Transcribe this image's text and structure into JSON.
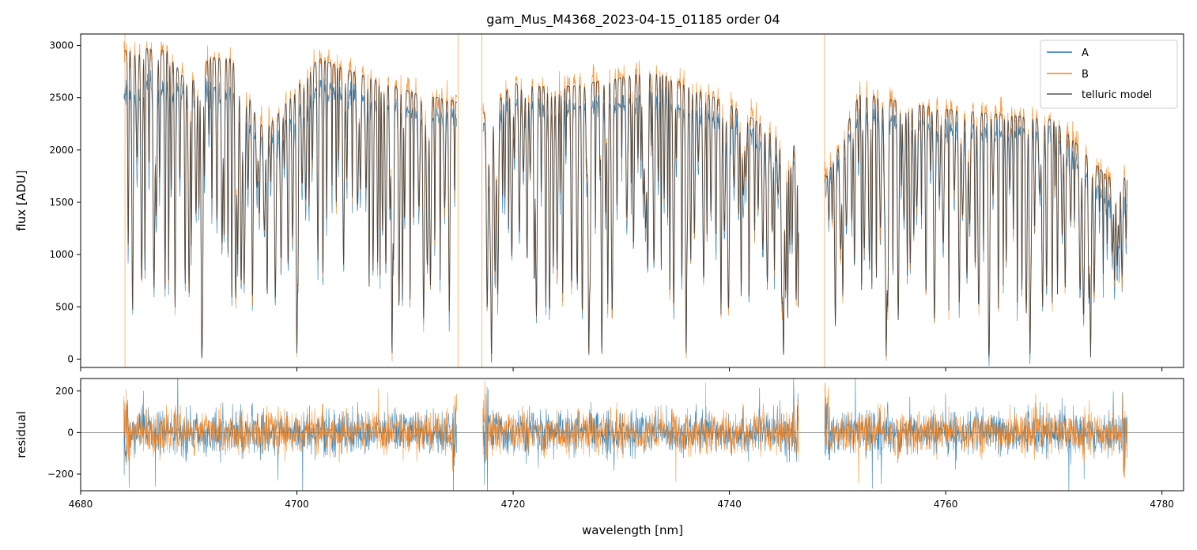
{
  "chart_data": [
    {
      "type": "line",
      "title": "gam_Mus_M4368_2023-04-15_01185  order 04",
      "xlabel": "",
      "ylabel": "flux [ADU]",
      "xlim": [
        4680,
        4782
      ],
      "ylim": [
        -80,
        3110
      ],
      "x_ticks": [
        4680,
        4700,
        4720,
        4740,
        4760,
        4780
      ],
      "y_ticks": [
        0,
        500,
        1000,
        1500,
        2000,
        2500,
        3000
      ],
      "y_tick_labels": [
        "0",
        "500",
        "1000",
        "1500",
        "2000",
        "2500",
        "3000"
      ],
      "grid": false,
      "legend_position": "top-right",
      "segments_x_range": [
        [
          4684.0,
          4714.8
        ],
        [
          4717.2,
          4746.4
        ],
        [
          4748.8,
          4776.8
        ]
      ],
      "deep_absorption_lines": [
        4691.2,
        4700.0,
        4708.8,
        4715.0,
        4718.0,
        4727.0,
        4728.2,
        4736.0,
        4745.0,
        4754.5,
        4764.0,
        4767.8,
        4773.4
      ],
      "series": [
        {
          "name": "A",
          "color": "#1f77b4",
          "points": [
            [
              4684.2,
              2550
            ],
            [
              4686,
              2620
            ],
            [
              4688,
              2600
            ],
            [
              4690,
              2540
            ],
            [
              4691.2,
              50
            ],
            [
              4692,
              2560
            ],
            [
              4694,
              2580
            ],
            [
              4695.5,
              400
            ],
            [
              4697,
              2000
            ],
            [
              4700,
              30
            ],
            [
              4702,
              2600
            ],
            [
              4704,
              2550
            ],
            [
              4708.8,
              20
            ],
            [
              4711,
              2350
            ],
            [
              4714.5,
              2300
            ],
            [
              4717.6,
              2200
            ],
            [
              4720,
              2450
            ],
            [
              4724,
              2400
            ],
            [
              4727,
              30
            ],
            [
              4728.2,
              -60
            ],
            [
              4730,
              2450
            ],
            [
              4733,
              2500
            ],
            [
              4736,
              40
            ],
            [
              4740,
              2250
            ],
            [
              4745,
              20
            ],
            [
              4746.2,
              1900
            ],
            [
              4749,
              1650
            ],
            [
              4752,
              2350
            ],
            [
              4754.5,
              50
            ],
            [
              4757,
              2250
            ],
            [
              4760,
              2200
            ],
            [
              4764,
              60
            ],
            [
              4767.8,
              80
            ],
            [
              4770,
              2150
            ],
            [
              4773.4,
              60
            ],
            [
              4775,
              1500
            ],
            [
              4776.6,
              50
            ]
          ]
        },
        {
          "name": "B",
          "color": "#ff7f0e",
          "points": [
            [
              4684.2,
              2950
            ],
            [
              4686,
              2980
            ],
            [
              4688,
              2960
            ],
            [
              4690,
              2620
            ],
            [
              4691.2,
              60
            ],
            [
              4692,
              2900
            ],
            [
              4694,
              2880
            ],
            [
              4695.5,
              420
            ],
            [
              4697,
              2200
            ],
            [
              4700,
              30
            ],
            [
              4702,
              2900
            ],
            [
              4704,
              2800
            ],
            [
              4708.8,
              20
            ],
            [
              4711,
              2550
            ],
            [
              4714.5,
              2480
            ],
            [
              4717.6,
              2350
            ],
            [
              4720,
              2650
            ],
            [
              4724,
              2600
            ],
            [
              4727,
              30
            ],
            [
              4728.2,
              -50
            ],
            [
              4730,
              2700
            ],
            [
              4733,
              2780
            ],
            [
              4736,
              40
            ],
            [
              4740,
              2450
            ],
            [
              4745,
              20
            ],
            [
              4746.2,
              2050
            ],
            [
              4749,
              1750
            ],
            [
              4752,
              2550
            ],
            [
              4754.5,
              50
            ],
            [
              4757,
              2450
            ],
            [
              4760,
              2400
            ],
            [
              4764,
              60
            ],
            [
              4767.8,
              80
            ],
            [
              4770,
              2300
            ],
            [
              4773.4,
              60
            ],
            [
              4775,
              1750
            ],
            [
              4776.6,
              60
            ]
          ]
        },
        {
          "name": "telluric model",
          "color": "#333333",
          "points": [
            [
              4684.2,
              2950
            ],
            [
              4686,
              2970
            ],
            [
              4688,
              2950
            ],
            [
              4690,
              2610
            ],
            [
              4691.2,
              60
            ],
            [
              4692,
              2890
            ],
            [
              4694,
              2870
            ],
            [
              4695.5,
              420
            ],
            [
              4697,
              2180
            ],
            [
              4700,
              30
            ],
            [
              4702,
              2880
            ],
            [
              4704,
              2790
            ],
            [
              4708.8,
              20
            ],
            [
              4711,
              2540
            ],
            [
              4714.5,
              2470
            ],
            [
              4717.6,
              2340
            ],
            [
              4720,
              2640
            ],
            [
              4724,
              2590
            ],
            [
              4727,
              30
            ],
            [
              4728.2,
              -40
            ],
            [
              4730,
              2690
            ],
            [
              4733,
              2760
            ],
            [
              4736,
              40
            ],
            [
              4740,
              2440
            ],
            [
              4745,
              20
            ],
            [
              4746.2,
              2040
            ],
            [
              4749,
              1740
            ],
            [
              4752,
              2540
            ],
            [
              4754.5,
              50
            ],
            [
              4757,
              2440
            ],
            [
              4760,
              2390
            ],
            [
              4764,
              60
            ],
            [
              4767.8,
              80
            ],
            [
              4770,
              2290
            ],
            [
              4773.4,
              60
            ],
            [
              4775,
              1740
            ],
            [
              4776.6,
              60
            ]
          ]
        }
      ]
    },
    {
      "type": "line",
      "title": "",
      "xlabel": "wavelength [nm]",
      "ylabel": "residual",
      "xlim": [
        4680,
        4782
      ],
      "ylim": [
        -280,
        260
      ],
      "x_ticks": [
        4680,
        4700,
        4720,
        4740,
        4760,
        4780
      ],
      "x_tick_labels": [
        "4680",
        "4700",
        "4720",
        "4740",
        "4760",
        "4780"
      ],
      "y_ticks": [
        -200,
        0,
        200
      ],
      "y_tick_labels": [
        "−200",
        "0",
        "200"
      ],
      "grid": false,
      "reference_line_y": 0,
      "segments_x_range": [
        [
          4684.0,
          4714.8
        ],
        [
          4717.2,
          4746.4
        ],
        [
          4748.8,
          4776.8
        ]
      ],
      "series": [
        {
          "name": "A",
          "color": "#1f77b4",
          "noise_amplitude": 95
        },
        {
          "name": "B",
          "color": "#ff7f0e",
          "noise_amplitude": 90
        }
      ]
    }
  ]
}
